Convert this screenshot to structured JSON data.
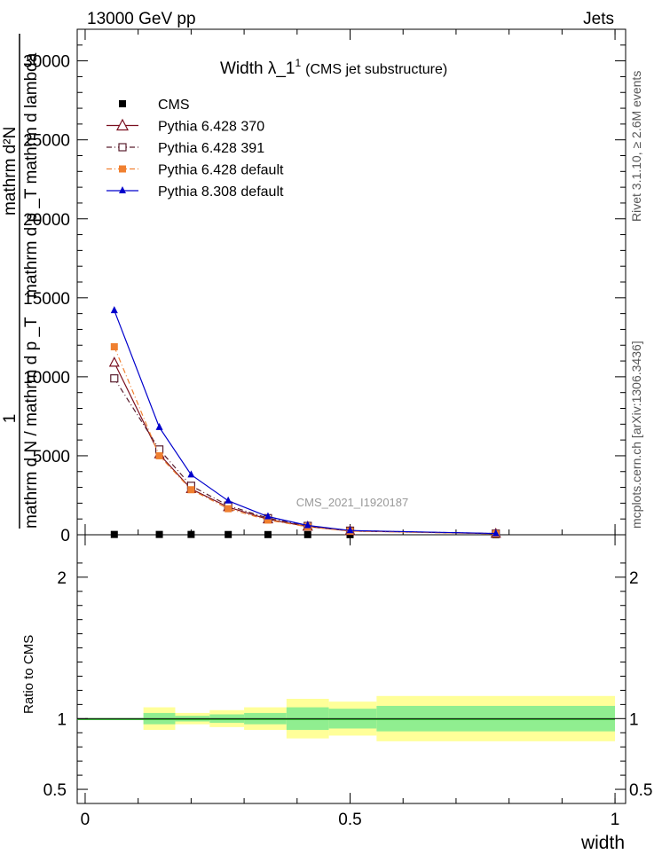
{
  "header": {
    "left": "13000 GeV pp",
    "right": "Jets",
    "side_rivet": "Rivet 3.1.10, ≥ 2.6M events",
    "side_mcplots": "mcplots.cern.ch [arXiv:1306.3436]"
  },
  "chart_data": {
    "type": "line",
    "title": "Width λ_1",
    "title_sup": "1",
    "subtitle": "(CMS jet substructure)",
    "watermark": "CMS_2021_I1920187",
    "ylabel_lines": [
      "1",
      "mathrm d N / mathrm d p _T",
      "mathrm d²N",
      "mathrm d p _T mathrm d lambda"
    ],
    "ylabel_num": "mathrm d²N",
    "ylabel_den": "mathrm d p _T mathrm d lambda",
    "ylabel_one": "1",
    "ylabel_outer_den": "mathrm d N / mathrm d p _T",
    "ylabel_ratio": "Ratio to CMS",
    "xlabel": "width",
    "xlim": [
      0,
      1
    ],
    "ylim": [
      0,
      32000
    ],
    "ratio_ylim": [
      0.4,
      2.3
    ],
    "y_ticks": [
      0,
      5000,
      10000,
      15000,
      20000,
      25000,
      30000
    ],
    "y_tick_labels": [
      "0",
      "5000",
      "10000",
      "15000",
      "20000",
      "25000",
      "30000"
    ],
    "ratio_ticks": [
      0.5,
      1,
      2
    ],
    "ratio_tick_labels": [
      "0.5",
      "1",
      "2"
    ],
    "x_ticks": [
      0,
      0.5,
      1
    ],
    "x_tick_labels": [
      "0",
      "0.5",
      "1"
    ],
    "x": [
      0.055,
      0.14,
      0.2,
      0.27,
      0.345,
      0.42,
      0.5,
      0.775
    ],
    "series": [
      {
        "name": "CMS",
        "color": "#000000",
        "marker": "square-filled",
        "dash": "",
        "values": [
          20,
          20,
          20,
          15,
          12,
          10,
          8,
          3
        ]
      },
      {
        "name": "Pythia 6.428 370",
        "color": "#7a0f1f",
        "marker": "triangle-open",
        "dash": "",
        "values": [
          10900,
          5100,
          2900,
          1750,
          980,
          520,
          240,
          70
        ]
      },
      {
        "name": "Pythia 6.428 391",
        "color": "#5a1e2e",
        "marker": "square-open",
        "dash": "6,3,1,3",
        "values": [
          9900,
          5400,
          3100,
          1850,
          1050,
          560,
          260,
          75
        ]
      },
      {
        "name": "Pythia 6.428 default",
        "color": "#f08030",
        "marker": "square-filled",
        "dash": "6,3,1,3",
        "values": [
          11900,
          5000,
          2850,
          1650,
          930,
          500,
          230,
          65
        ]
      },
      {
        "name": "Pythia 8.308 default",
        "color": "#0000cc",
        "marker": "triangle-filled",
        "dash": "",
        "values": [
          14200,
          6800,
          3800,
          2150,
          1150,
          590,
          270,
          80
        ]
      }
    ],
    "ratio_bands": {
      "edges": [
        0,
        0.11,
        0.17,
        0.235,
        0.3,
        0.38,
        0.46,
        0.55,
        1
      ],
      "inner": [
        0.005,
        0.04,
        0.02,
        0.03,
        0.04,
        0.08,
        0.07,
        0.09
      ],
      "outer": [
        0.005,
        0.08,
        0.04,
        0.06,
        0.08,
        0.14,
        0.12,
        0.16
      ],
      "inner_color": "#90ee90",
      "outer_color": "#ffff99"
    }
  }
}
